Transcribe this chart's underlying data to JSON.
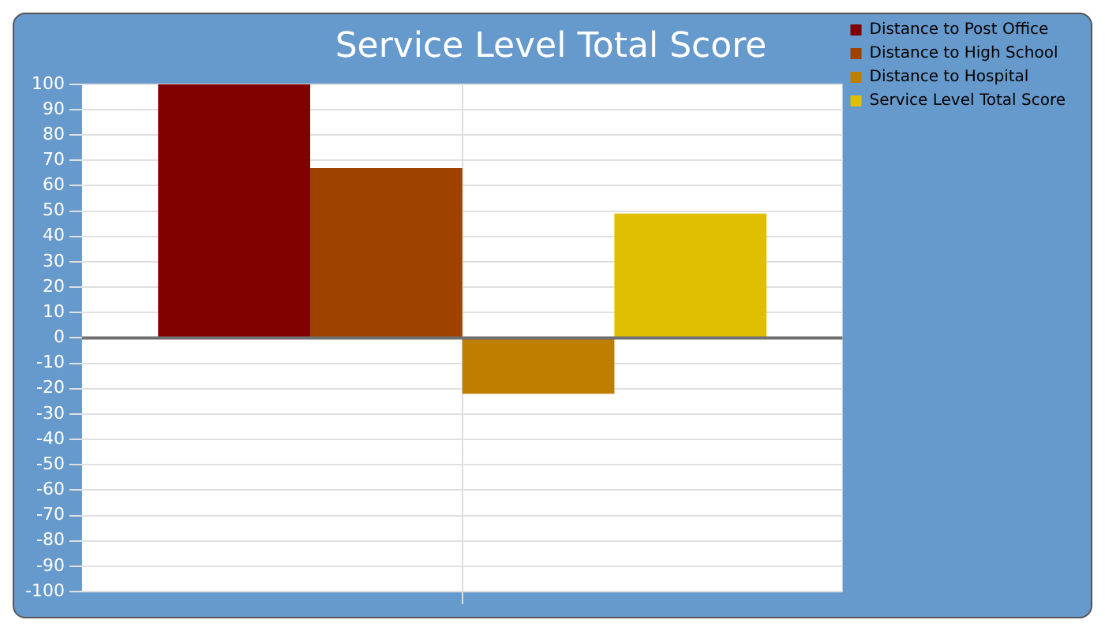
{
  "chart_data": {
    "type": "bar",
    "title": "Service Level Total Score",
    "categories": [
      null
    ],
    "series": [
      {
        "name": "Distance to Post Office",
        "color": "#800000",
        "values": [
          100
        ]
      },
      {
        "name": "Distance to High School",
        "color": "#9e4200",
        "values": [
          67
        ]
      },
      {
        "name": "Distance to Hospital",
        "color": "#be7e00",
        "values": [
          -22
        ]
      },
      {
        "name": "Service Level Total Score",
        "color": "#e0be00",
        "values": [
          49
        ]
      }
    ],
    "ylim": [
      -100,
      100
    ],
    "yticks": [
      -100,
      -90,
      -80,
      -70,
      -60,
      -50,
      -40,
      -30,
      -20,
      -10,
      0,
      10,
      20,
      30,
      40,
      50,
      60,
      70,
      80,
      90,
      100
    ],
    "grid": true,
    "legend": "top right"
  }
}
